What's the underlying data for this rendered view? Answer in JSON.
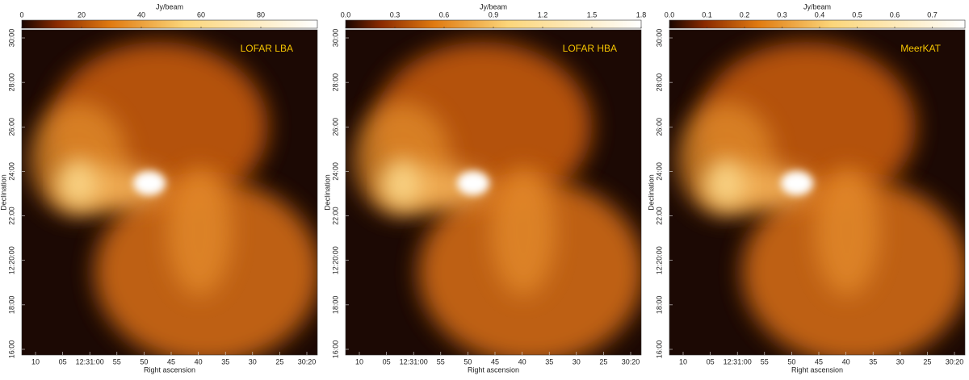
{
  "figure": {
    "panels": [
      {
        "colorbar_label": "Jy/beam",
        "colorbar_ticks": [
          "0",
          "20",
          "40",
          "60",
          "80"
        ],
        "label": "LOFAR LBA",
        "y_axis_label": "Declination",
        "y_ticks": [
          "30:00",
          "28:00",
          "26:00",
          "24:00",
          "22:00",
          "12:20:00",
          "18:00",
          "16:00"
        ],
        "x_axis_label": "Right ascension",
        "x_ticks": [
          "10",
          "05",
          "12:31:00",
          "55",
          "50",
          "45",
          "40",
          "35",
          "30",
          "25",
          "30:20"
        ]
      },
      {
        "colorbar_label": "Jy/beam",
        "colorbar_ticks": [
          "0.0",
          "0.3",
          "0.6",
          "0.9",
          "1.2",
          "1.5",
          "1.8"
        ],
        "label": "LOFAR HBA",
        "y_axis_label": "Declination",
        "y_ticks": [
          "30:00",
          "28:00",
          "26:00",
          "24:00",
          "22:00",
          "12:20:00",
          "18:00",
          "16:00"
        ],
        "x_axis_label": "Right ascension",
        "x_ticks": [
          "10",
          "05",
          "12:31:00",
          "55",
          "50",
          "45",
          "40",
          "35",
          "30",
          "25",
          "30:20"
        ]
      },
      {
        "colorbar_label": "Jy/beam",
        "colorbar_ticks": [
          "0.0",
          "0.1",
          "0.2",
          "0.3",
          "0.4",
          "0.5",
          "0.6",
          "0.7"
        ],
        "label": "MeerKAT",
        "y_axis_label": "Declination",
        "y_ticks": [
          "30:00",
          "28:00",
          "26:00",
          "24:00",
          "22:00",
          "12:20:00",
          "18:00",
          "16:00"
        ],
        "x_axis_label": "Right ascension",
        "x_ticks": [
          "10",
          "05",
          "12:31:00",
          "55",
          "50",
          "45",
          "40",
          "35",
          "30",
          "25",
          "30:20"
        ]
      }
    ]
  }
}
